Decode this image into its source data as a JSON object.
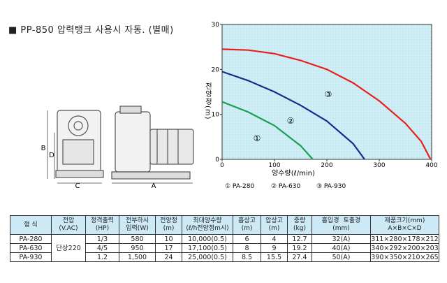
{
  "header": {
    "title": "■ PP-850 압력탱크 사용시 자동. (별매)"
  },
  "drawing": {
    "labels": [
      "B",
      "D",
      "C",
      "A"
    ]
  },
  "chart_data": {
    "type": "line",
    "y_label": "전양정(m)",
    "x_label": "양수량(ℓ/min)",
    "xlim": [
      0,
      400
    ],
    "xticks": [
      0,
      100,
      200,
      300,
      400
    ],
    "ylim": [
      0,
      30
    ],
    "yticks": [
      0,
      10,
      20,
      30
    ],
    "grid": false,
    "annotations": [
      "①",
      "②",
      "③"
    ],
    "series": [
      {
        "name": "① PA-280",
        "color": "#1aa050",
        "x": [
          0,
          50,
          100,
          150,
          173
        ],
        "values": [
          12.8,
          10.5,
          7.5,
          3,
          0
        ]
      },
      {
        "name": "② PA-630",
        "color": "#1a2a8a",
        "x": [
          0,
          50,
          100,
          150,
          200,
          250,
          272
        ],
        "values": [
          19.5,
          17.5,
          15,
          12,
          8.5,
          3.5,
          0
        ]
      },
      {
        "name": "③ PA-930",
        "color": "#e8201a",
        "x": [
          0,
          50,
          100,
          150,
          200,
          250,
          300,
          350,
          380,
          398
        ],
        "values": [
          24.5,
          24.3,
          23.5,
          22,
          20,
          17,
          13,
          8,
          4,
          0
        ]
      }
    ]
  },
  "table": {
    "headers": [
      [
        "형 식"
      ],
      [
        "전압",
        "(V.AC)"
      ],
      [
        "정격출력",
        "(HP)"
      ],
      [
        "전부하시",
        "입력(W)"
      ],
      [
        "전양정",
        "(m)"
      ],
      [
        "최대양수량",
        "(ℓ/h전양정m시)"
      ],
      [
        "흡상고",
        "(m)"
      ],
      [
        "압상고",
        "(m)"
      ],
      [
        "중량",
        "(kg)"
      ],
      [
        "흡입경",
        "토출경",
        "(mm)"
      ],
      [
        "제품크기(mm)",
        "A×B×C×D"
      ]
    ],
    "voltage": "단상220",
    "rows": [
      [
        "PA-280",
        "1/3",
        "580",
        "10",
        "10,000(0.5)",
        "6",
        "4",
        "12.7",
        "32(A)",
        "311×280×178×212"
      ],
      [
        "PA-630",
        "4/5",
        "950",
        "17",
        "17,100(0.5)",
        "8",
        "9",
        "19.2",
        "40(A)",
        "340×292×200×203"
      ],
      [
        "PA-930",
        "1.2",
        "1,500",
        "24",
        "25,000(0.5)",
        "8.5",
        "15.5",
        "27.4",
        "50(A)",
        "390×350×210×265"
      ]
    ]
  }
}
